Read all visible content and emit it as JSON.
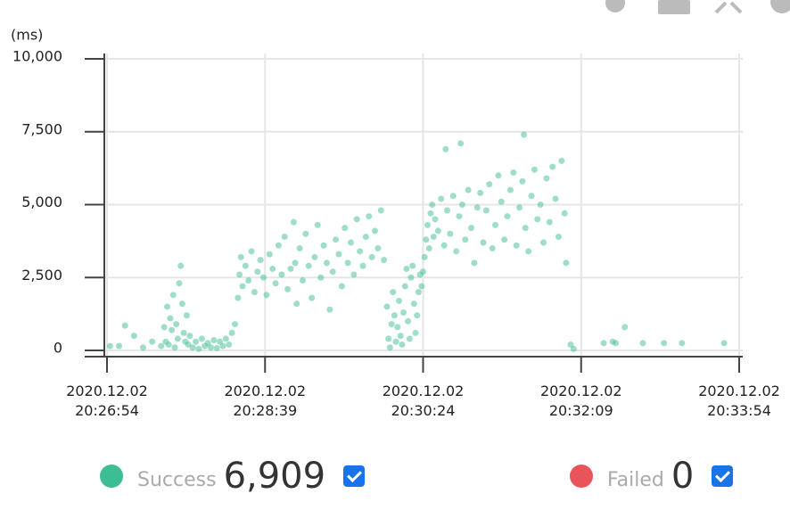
{
  "chart_data": {
    "type": "scatter",
    "y_label": "(ms)",
    "xlim": [
      "2020.12.02 20:26:54",
      "2020.12.02 20:33:54"
    ],
    "xticks": [
      {
        "value": "2020.12.02 20:26:54",
        "label": "2020.12.02\n20:26:54"
      },
      {
        "value": "2020.12.02 20:28:39",
        "label": "2020.12.02\n20:28:39"
      },
      {
        "value": "2020.12.02 20:30:24",
        "label": "2020.12.02\n20:30:24"
      },
      {
        "value": "2020.12.02 20:32:09",
        "label": "2020.12.02\n20:32:09"
      },
      {
        "value": "2020.12.02 20:33:54",
        "label": "2020.12.02\n20:33:54"
      }
    ],
    "ylim": [
      0,
      10000
    ],
    "yticks": [
      0,
      {
        "value": 2500,
        "label": "2,500"
      },
      {
        "value": 5000,
        "label": "5,000"
      },
      {
        "value": 7500,
        "label": "7,500"
      },
      {
        "value": 10000,
        "label": "10,000"
      }
    ],
    "grid": true,
    "series": [
      {
        "name": "Success",
        "color": "#3dbd94",
        "total": {
          "value": 6909,
          "label": "6,909"
        },
        "checked": true,
        "x": [
          "20:26:56",
          "20:27:02",
          "20:27:06",
          "20:27:12",
          "20:27:18",
          "20:27:24",
          "20:27:30",
          "20:27:32",
          "20:27:33",
          "20:27:34",
          "20:27:35",
          "20:27:36",
          "20:27:37",
          "20:27:38",
          "20:27:39",
          "20:27:40",
          "20:27:41",
          "20:27:42",
          "20:27:43",
          "20:27:44",
          "20:27:45",
          "20:27:46",
          "20:27:47",
          "20:27:48",
          "20:27:49",
          "20:27:51",
          "20:27:53",
          "20:27:55",
          "20:27:57",
          "20:27:59",
          "20:28:01",
          "20:28:03",
          "20:28:05",
          "20:28:07",
          "20:28:09",
          "20:28:11",
          "20:28:13",
          "20:28:15",
          "20:28:17",
          "20:28:19",
          "20:28:21",
          "20:28:22",
          "20:28:23",
          "20:28:24",
          "20:28:26",
          "20:28:28",
          "20:28:30",
          "20:28:32",
          "20:28:34",
          "20:28:36",
          "20:28:38",
          "20:28:40",
          "20:28:42",
          "20:28:44",
          "20:28:46",
          "20:28:48",
          "20:28:50",
          "20:28:52",
          "20:28:54",
          "20:28:56",
          "20:28:58",
          "20:28:59",
          "20:29:00",
          "20:29:02",
          "20:29:04",
          "20:29:06",
          "20:29:08",
          "20:29:10",
          "20:29:12",
          "20:29:14",
          "20:29:16",
          "20:29:18",
          "20:29:20",
          "20:29:22",
          "20:29:24",
          "20:29:26",
          "20:29:28",
          "20:29:30",
          "20:29:32",
          "20:29:34",
          "20:29:36",
          "20:29:38",
          "20:29:40",
          "20:29:42",
          "20:29:44",
          "20:29:46",
          "20:29:48",
          "20:29:50",
          "20:29:52",
          "20:29:54",
          "20:29:56",
          "20:29:58",
          "20:30:00",
          "20:30:01",
          "20:30:02",
          "20:30:03",
          "20:30:04",
          "20:30:05",
          "20:30:06",
          "20:30:07",
          "20:30:08",
          "20:30:09",
          "20:30:10",
          "20:30:11",
          "20:30:12",
          "20:30:13",
          "20:30:14",
          "20:30:15",
          "20:30:16",
          "20:30:17",
          "20:30:18",
          "20:30:19",
          "20:30:20",
          "20:30:21",
          "20:30:22",
          "20:30:23",
          "20:30:24",
          "20:30:25",
          "20:30:26",
          "20:30:27",
          "20:30:28",
          "20:30:29",
          "20:30:30",
          "20:30:31",
          "20:30:32",
          "20:30:34",
          "20:30:36",
          "20:30:38",
          "20:30:39",
          "20:30:40",
          "20:30:42",
          "20:30:44",
          "20:30:46",
          "20:30:48",
          "20:30:49",
          "20:30:50",
          "20:30:52",
          "20:30:54",
          "20:30:56",
          "20:30:58",
          "20:31:00",
          "20:31:02",
          "20:31:04",
          "20:31:06",
          "20:31:08",
          "20:31:10",
          "20:31:12",
          "20:31:14",
          "20:31:16",
          "20:31:18",
          "20:31:20",
          "20:31:22",
          "20:31:24",
          "20:31:26",
          "20:31:28",
          "20:31:30",
          "20:31:31",
          "20:31:32",
          "20:31:34",
          "20:31:36",
          "20:31:38",
          "20:31:40",
          "20:31:42",
          "20:31:44",
          "20:31:46",
          "20:31:48",
          "20:31:50",
          "20:31:52",
          "20:31:54",
          "20:31:56",
          "20:31:58",
          "20:31:59",
          "20:32:02",
          "20:32:04",
          "20:32:24",
          "20:32:30",
          "20:32:32",
          "20:32:38",
          "20:32:50",
          "20:33:04",
          "20:33:16",
          "20:33:44"
        ],
        "values": [
          150,
          150,
          850,
          500,
          100,
          300,
          150,
          800,
          300,
          1500,
          200,
          1100,
          700,
          1900,
          100,
          900,
          400,
          2300,
          2900,
          1600,
          600,
          300,
          1200,
          200,
          500,
          100,
          300,
          50,
          400,
          150,
          250,
          100,
          350,
          80,
          300,
          150,
          400,
          200,
          600,
          900,
          1800,
          2600,
          3200,
          2200,
          2900,
          2400,
          3400,
          2000,
          2700,
          3100,
          2500,
          1900,
          3300,
          2800,
          2300,
          3600,
          2600,
          3900,
          2100,
          2800,
          4400,
          3000,
          1600,
          3500,
          2400,
          4000,
          2900,
          1800,
          3200,
          4300,
          2500,
          3600,
          3000,
          1400,
          2700,
          3800,
          3300,
          2200,
          4200,
          3000,
          3700,
          2600,
          4500,
          3400,
          2900,
          3900,
          4600,
          3200,
          4100,
          3500,
          4800,
          3100,
          1500,
          400,
          100,
          900,
          2000,
          1200,
          300,
          800,
          1700,
          500,
          200,
          1300,
          2200,
          2800,
          1000,
          400,
          2500,
          2900,
          1600,
          600,
          1200,
          2000,
          2600,
          2200,
          2700,
          3200,
          3800,
          4300,
          3500,
          4700,
          5000,
          3900,
          4500,
          4100,
          5200,
          3600,
          6900,
          4800,
          4000,
          5300,
          3400,
          4600,
          7100,
          5000,
          3800,
          5500,
          4200,
          3000,
          4900,
          5400,
          3700,
          4800,
          5700,
          3500,
          4300,
          6000,
          5100,
          3800,
          4600,
          5500,
          6100,
          3600,
          4900,
          5800,
          7400,
          4200,
          3400,
          5300,
          6200,
          4500,
          5000,
          3700,
          5900,
          4400,
          6300,
          5200,
          3900,
          6500,
          4700,
          3000,
          200,
          50,
          250,
          300,
          250,
          800,
          250,
          250,
          250,
          250
        ]
      },
      {
        "name": "Failed",
        "color": "#e9545a",
        "total": 0,
        "checked": true,
        "x": [],
        "values": []
      }
    ]
  }
}
